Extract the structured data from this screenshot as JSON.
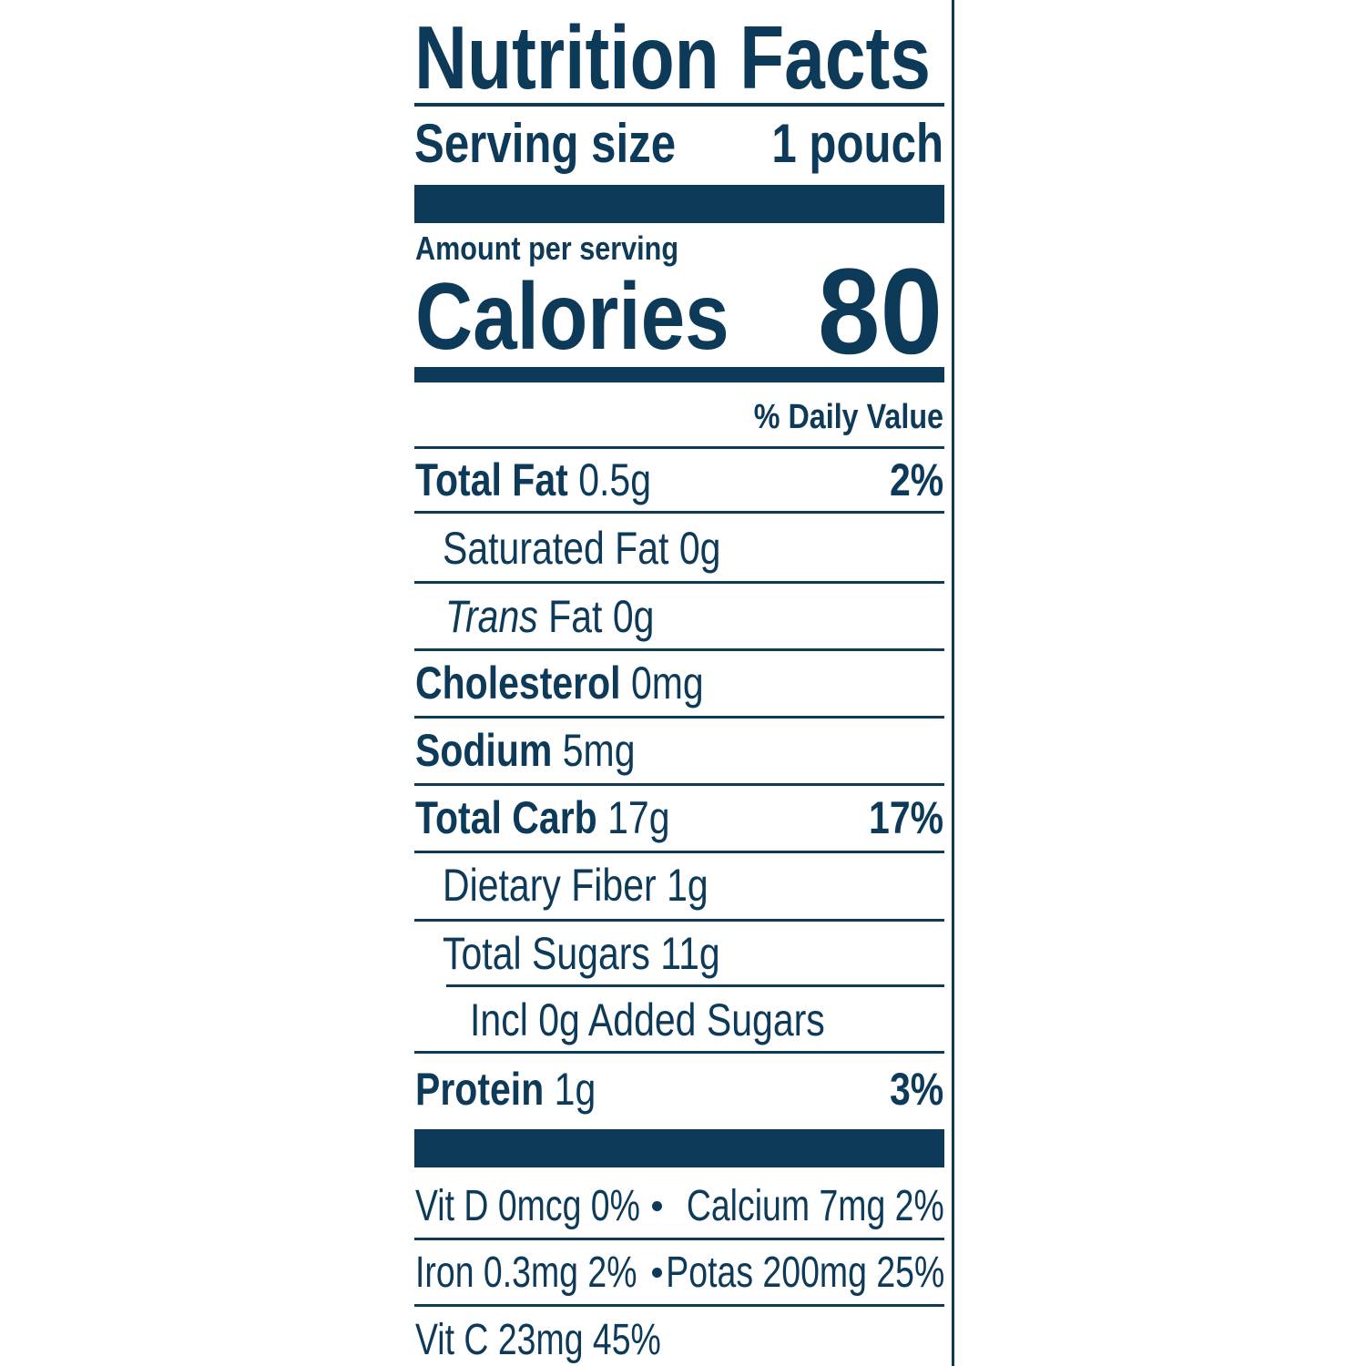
{
  "title": "Nutrition Facts",
  "serving": {
    "label": "Serving size",
    "value": "1 pouch"
  },
  "amount_per_serving": "Amount per serving",
  "calories": {
    "label": "Calories",
    "value": "80"
  },
  "daily_value_header": "% Daily Value",
  "nutrients": [
    {
      "name": "Total Fat",
      "amount": "0.5g",
      "dv": "2%"
    },
    {
      "name": "Saturated Fat",
      "amount": "0g"
    },
    {
      "name_italic": "Trans",
      "name": "Fat",
      "amount": "0g"
    },
    {
      "name": "Cholesterol",
      "amount": "0mg"
    },
    {
      "name": "Sodium",
      "amount": "5mg"
    },
    {
      "name": "Total Carb",
      "amount": "17g",
      "dv": "17%"
    },
    {
      "name": "Dietary Fiber",
      "amount": "1g"
    },
    {
      "name": "Total Sugars",
      "amount": "11g"
    },
    {
      "name": "Incl 0g Added Sugars"
    },
    {
      "name": "Protein",
      "amount": "1g",
      "dv": "3%"
    }
  ],
  "vitamins": [
    [
      "Vit D 0mcg 0%",
      "Calcium 7mg 2%"
    ],
    [
      "Iron 0.3mg 2%",
      "Potas 200mg 25%"
    ],
    [
      "Vit C 23mg 45%"
    ]
  ]
}
